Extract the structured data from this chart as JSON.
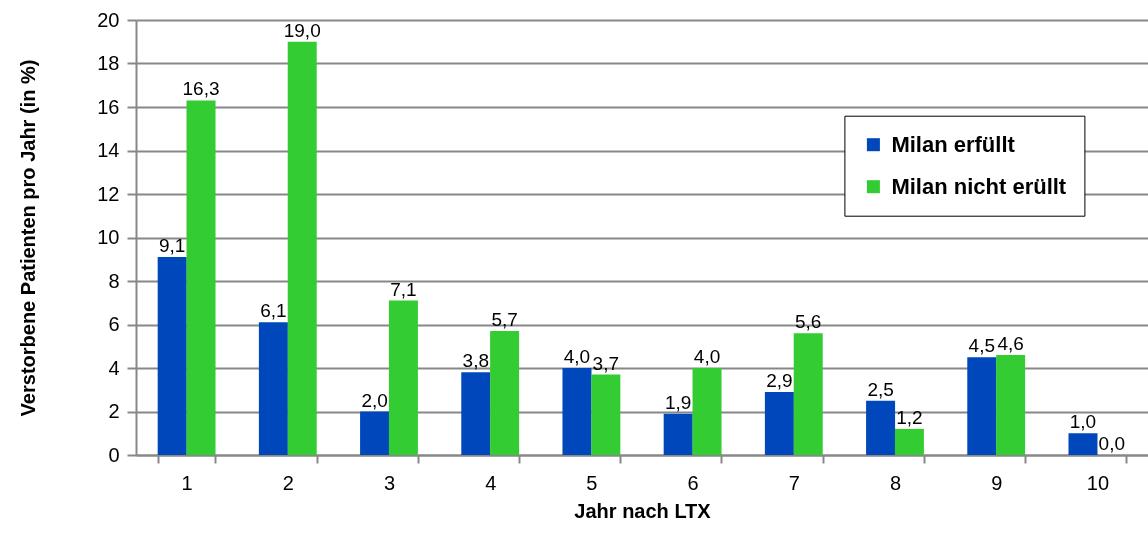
{
  "chart_data": {
    "type": "bar",
    "xlabel": "Jahr nach LTX",
    "ylabel": "Verstorbene Patienten pro Jahr (in %)",
    "categories": [
      "1",
      "2",
      "3",
      "4",
      "5",
      "6",
      "7",
      "8",
      "9",
      "10"
    ],
    "series": [
      {
        "name": "Milan erfüllt",
        "color": "#0047bb",
        "values": [
          9.1,
          6.1,
          2.0,
          3.8,
          4.0,
          1.9,
          2.9,
          2.5,
          4.5,
          1.0
        ],
        "value_labels": [
          "9,1",
          "6,1",
          "2,0",
          "3,8",
          "4,0",
          "1,9",
          "2,9",
          "2,5",
          "4,5",
          "1,0"
        ]
      },
      {
        "name": "Milan nicht erüllt",
        "color": "#33cc33",
        "values": [
          16.3,
          19.0,
          7.1,
          5.7,
          3.7,
          4.0,
          5.6,
          1.2,
          4.6,
          0.0
        ],
        "value_labels": [
          "16,3",
          "19,0",
          "7,1",
          "5,7",
          "3,7",
          "4,0",
          "5,6",
          "1,2",
          "4,6",
          "0,0"
        ]
      }
    ],
    "ylim": [
      0,
      20
    ],
    "yticks": [
      0,
      2,
      4,
      6,
      8,
      10,
      12,
      14,
      16,
      18,
      20
    ],
    "grid": "y",
    "legend": "top right"
  }
}
